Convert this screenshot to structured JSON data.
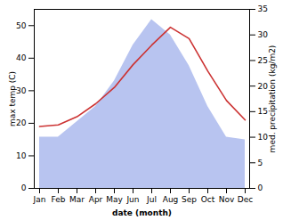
{
  "chart_data": {
    "type": "line",
    "categories": [
      "Jan",
      "Feb",
      "Mar",
      "Apr",
      "May",
      "Jun",
      "Jul",
      "Aug",
      "Sep",
      "Oct",
      "Nov",
      "Dec"
    ],
    "xlabel": "date (month)",
    "ylabel": "max temp (C)",
    "y2label": "med. precipitation (kg/m2)",
    "ylim": [
      0,
      55
    ],
    "yticks": [
      0,
      10,
      20,
      30,
      40,
      50
    ],
    "y2lim": [
      0,
      35
    ],
    "y2ticks": [
      0,
      5,
      10,
      15,
      20,
      25,
      30,
      35
    ],
    "series": [
      {
        "type": "area",
        "color": "#b8c4f0",
        "axis": "y2",
        "values": [
          10.0,
          10.0,
          13.0,
          16.0,
          21.0,
          28.0,
          33.0,
          30.0,
          24.0,
          16.0,
          10.0,
          9.5
        ]
      },
      {
        "type": "line",
        "color": "#cc3333",
        "values": [
          19.0,
          19.5,
          22.0,
          26.0,
          31.0,
          38.0,
          44.0,
          49.5,
          46.0,
          36.0,
          27.0,
          21.0
        ]
      }
    ]
  }
}
